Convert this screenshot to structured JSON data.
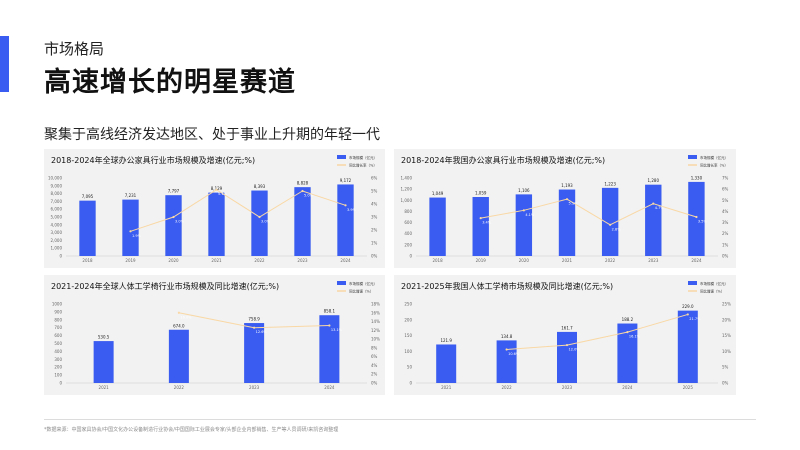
{
  "header": {
    "section": "市场格局",
    "title": "高速增长的明星赛道",
    "subtitle": "聚集于高线经济发达地区、处于事业上升期的年轻一代"
  },
  "footer": {
    "note": "*数据来源：中国家具协会/中国文化办公设备制造行业协会/中国国际工业展会专家/头部企业内部销售、生产等人员调研/来凯咨询整理"
  },
  "colors": {
    "bar": "#3a5cf0",
    "line": "#f9d8a5",
    "panel": "#f2f2f2",
    "accent": "#3a5cf0"
  },
  "chart_data": [
    {
      "type": "bar",
      "title": "2018-2024年全球办公家具行业市场规模及增速(亿元;%)",
      "categories": [
        "2018",
        "2019",
        "2020",
        "2021",
        "2022",
        "2023",
        "2024"
      ],
      "series": [
        {
          "name": "市场规模（亿元）",
          "type": "bar",
          "axis": "left",
          "values": [
            7095,
            7231,
            7797,
            8129,
            8393,
            8828,
            9172
          ],
          "labels": [
            "7,095",
            "7,231",
            "7,797",
            "8,129",
            "8,393",
            "8,828",
            "9,172"
          ]
        },
        {
          "name": "同比增长率（%）",
          "type": "line",
          "axis": "right",
          "values": [
            null,
            1.9,
            3.0,
            5.1,
            3.0,
            5.0,
            3.9
          ],
          "labels": [
            "",
            "1.9%",
            "3.0%",
            "5.1%",
            "3.0%",
            "5.0%",
            "3.9%"
          ]
        }
      ],
      "left_axis": {
        "ylim": [
          0,
          10000
        ],
        "ticks": [
          "0",
          "1,000",
          "2,000",
          "3,000",
          "4,000",
          "5,000",
          "6,000",
          "7,000",
          "8,000",
          "9,000",
          "10,000"
        ]
      },
      "right_axis": {
        "ylim": [
          0,
          6
        ],
        "ticks": [
          "0%",
          "1%",
          "2%",
          "3%",
          "4%",
          "5%",
          "6%"
        ]
      },
      "grid": false,
      "legend_position": "top-right"
    },
    {
      "type": "bar",
      "title": "2018-2024年我国办公家具行业市场规模及增速(亿元;%)",
      "categories": [
        "2018",
        "2019",
        "2020",
        "2021",
        "2022",
        "2023",
        "2024"
      ],
      "series": [
        {
          "name": "市场规模（亿元）",
          "type": "bar",
          "axis": "left",
          "values": [
            1049,
            1059,
            1106,
            1193,
            1223,
            1280,
            1330
          ],
          "labels": [
            "1,049",
            "1,059",
            "1,106",
            "1,193",
            "1,223",
            "1,280",
            "1,330"
          ]
        },
        {
          "name": "同比增长率（%）",
          "type": "line",
          "axis": "right",
          "values": [
            null,
            3.4,
            4.1,
            5.1,
            2.8,
            4.7,
            3.5
          ],
          "labels": [
            "",
            "3.4%",
            "4.1%",
            "5.1%",
            "2.8%",
            "4.7%",
            "3.5%"
          ]
        }
      ],
      "left_axis": {
        "ylim": [
          0,
          1400
        ],
        "ticks": [
          "0",
          "200",
          "400",
          "600",
          "800",
          "1,000",
          "1,200",
          "1,400"
        ]
      },
      "right_axis": {
        "ylim": [
          0,
          7
        ],
        "ticks": [
          "0%",
          "1%",
          "2%",
          "3%",
          "4%",
          "5%",
          "6%",
          "7%"
        ]
      },
      "grid": false,
      "legend_position": "top-right"
    },
    {
      "type": "bar",
      "title": "2021-2024年全球人体工学椅行业市场规模及同比增速(亿元;%)",
      "categories": [
        "2021",
        "2022",
        "2023",
        "2024"
      ],
      "series": [
        {
          "name": "市场规模（亿元）",
          "type": "bar",
          "axis": "left",
          "values": [
            530.5,
            674.0,
            758.9,
            858.1
          ],
          "labels": [
            "530.5",
            "674.0",
            "758.9",
            "858.1"
          ]
        },
        {
          "name": "同比增速（%）",
          "type": "line",
          "axis": "right",
          "values": [
            null,
            16.0,
            12.6,
            13.1
          ],
          "labels": [
            "",
            "16.0%",
            "12.6%",
            "13.1%"
          ]
        }
      ],
      "left_axis": {
        "ylim": [
          0,
          1000
        ],
        "ticks": [
          "0",
          "100",
          "200",
          "300",
          "400",
          "500",
          "600",
          "700",
          "800",
          "900",
          "1000"
        ]
      },
      "right_axis": {
        "ylim": [
          0,
          18
        ],
        "ticks": [
          "0%",
          "2%",
          "4%",
          "6%",
          "8%",
          "10%",
          "12%",
          "14%",
          "16%",
          "18%"
        ]
      },
      "grid": false,
      "legend_position": "top-right"
    },
    {
      "type": "bar",
      "title": "2021-2025年我国人体工学椅市场规模及同比增速(亿元;%)",
      "categories": [
        "2021",
        "2022",
        "2023",
        "2024",
        "2025"
      ],
      "series": [
        {
          "name": "市场规模（亿元）",
          "type": "bar",
          "axis": "left",
          "values": [
            121.9,
            134.8,
            161.7,
            188.2,
            229.0
          ],
          "labels": [
            "121.9",
            "134.8",
            "161.7",
            "188.2",
            "229.0"
          ]
        },
        {
          "name": "同比增速（%）",
          "type": "line",
          "axis": "right",
          "values": [
            null,
            10.6,
            12.0,
            16.1,
            21.7
          ],
          "labels": [
            "",
            "10.6%",
            "12.0%",
            "16.1%",
            "21.7%"
          ]
        }
      ],
      "left_axis": {
        "ylim": [
          0,
          250
        ],
        "ticks": [
          "0",
          "50",
          "100",
          "150",
          "200",
          "250"
        ]
      },
      "right_axis": {
        "ylim": [
          0,
          25
        ],
        "ticks": [
          "0%",
          "5%",
          "10%",
          "15%",
          "20%",
          "25%"
        ]
      },
      "grid": false,
      "legend_position": "top-right"
    }
  ]
}
